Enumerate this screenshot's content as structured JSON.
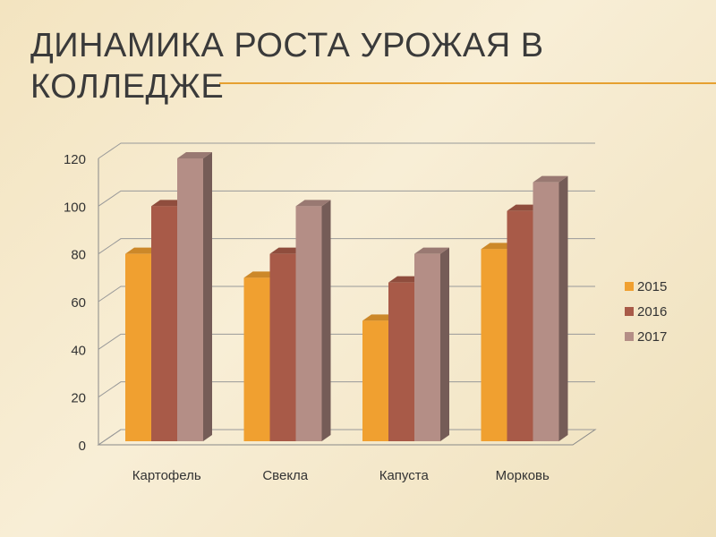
{
  "chart_data": {
    "type": "bar3d",
    "title": "ДИНАМИКА РОСТА УРОЖАЯ В КОЛЛЕДЖЕ",
    "categories": [
      "Картофель",
      "Свекла",
      "Капуста",
      "Морковь"
    ],
    "series": [
      {
        "name": "2015",
        "color": "#f0a030",
        "values": [
          80,
          70,
          52,
          82
        ]
      },
      {
        "name": "2016",
        "color": "#a85a48",
        "values": [
          100,
          80,
          68,
          98
        ]
      },
      {
        "name": "2017",
        "color": "#b48e86",
        "values": [
          120,
          100,
          80,
          110
        ]
      }
    ],
    "ylim": [
      0,
      120
    ],
    "yticks": [
      0,
      20,
      40,
      60,
      80,
      100,
      120
    ],
    "grid": true,
    "legend": "right"
  }
}
